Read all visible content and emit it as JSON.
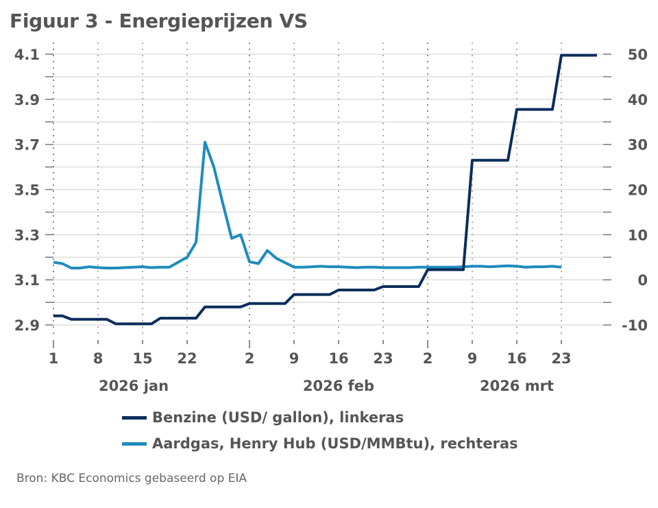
{
  "title": "Figuur 3 - Energieprijzen VS",
  "source": "Bron: KBC Economics gebaseerd op EIA",
  "colors": {
    "benzine": "#0b2d5b",
    "aardgas": "#1f8bbd",
    "text": "#555555",
    "grid": "#dddddd"
  },
  "chart_data": {
    "type": "line",
    "title": "Figuur 3 - Energieprijzen VS",
    "x_unit": "weekday index from 2026-01-01",
    "x_ticks": [
      {
        "index": 0,
        "label": "1"
      },
      {
        "index": 5,
        "label": "8"
      },
      {
        "index": 10,
        "label": "15"
      },
      {
        "index": 15,
        "label": "22"
      },
      {
        "index": 22,
        "label": "2"
      },
      {
        "index": 27,
        "label": "9"
      },
      {
        "index": 32,
        "label": "16"
      },
      {
        "index": 37,
        "label": "23"
      },
      {
        "index": 42,
        "label": "2"
      },
      {
        "index": 47,
        "label": "9"
      },
      {
        "index": 52,
        "label": "16"
      },
      {
        "index": 57,
        "label": "23"
      }
    ],
    "month_boundaries": [
      0,
      22,
      42
    ],
    "months": [
      {
        "label": "2026 jan",
        "center": 9
      },
      {
        "label": "2026 feb",
        "center": 32
      },
      {
        "label": "2026 mrt",
        "center": 52
      }
    ],
    "xlim": [
      0,
      62
    ],
    "y_left": {
      "ylim": [
        2.85,
        4.15
      ],
      "ticks": [
        "4.1",
        "3.9",
        "3.7",
        "3.5",
        "3.3",
        "3.1",
        "2.9"
      ],
      "tick_values": [
        4.1,
        3.9,
        3.7,
        3.5,
        3.3,
        3.1,
        2.9
      ],
      "minor_step": 0.1
    },
    "y_right": {
      "ylim": [
        -12.5,
        52.5
      ],
      "ticks": [
        "50",
        "40",
        "30",
        "20",
        "10",
        "0",
        "-10"
      ],
      "tick_values": [
        50,
        40,
        30,
        20,
        10,
        0,
        -10
      ]
    },
    "grid": true,
    "legend_position": "bottom",
    "series": [
      {
        "name": "Benzine (USD/ gallon), linkeras",
        "axis": "left",
        "x": [
          0,
          1,
          2,
          3,
          4,
          5,
          6,
          7,
          8,
          9,
          10,
          11,
          12,
          13,
          14,
          15,
          16,
          17,
          18,
          19,
          20,
          21,
          22,
          23,
          24,
          25,
          26,
          27,
          28,
          29,
          30,
          31,
          32,
          33,
          34,
          35,
          36,
          37,
          38,
          39,
          40,
          41,
          42,
          43,
          44,
          45,
          46,
          47,
          48,
          49,
          50,
          51,
          52,
          53,
          54,
          55,
          56,
          57,
          58,
          59,
          60,
          61
        ],
        "values": [
          2.94,
          2.94,
          2.925,
          2.925,
          2.925,
          2.925,
          2.925,
          2.905,
          2.905,
          2.905,
          2.905,
          2.905,
          2.93,
          2.93,
          2.93,
          2.93,
          2.93,
          2.98,
          2.98,
          2.98,
          2.98,
          2.98,
          2.995,
          2.995,
          2.995,
          2.995,
          2.995,
          3.035,
          3.035,
          3.035,
          3.035,
          3.035,
          3.055,
          3.055,
          3.055,
          3.055,
          3.055,
          3.07,
          3.07,
          3.07,
          3.07,
          3.07,
          3.145,
          3.145,
          3.145,
          3.145,
          3.145,
          3.63,
          3.63,
          3.63,
          3.63,
          3.63,
          3.855,
          3.855,
          3.855,
          3.855,
          3.855,
          4.095,
          4.095,
          4.095,
          4.095,
          4.095
        ]
      },
      {
        "name": "Aardgas, Henry Hub (USD/MMBtu), rechteras",
        "axis": "right",
        "x": [
          0,
          1,
          2,
          3,
          4,
          5,
          6,
          7,
          8,
          9,
          10,
          11,
          12,
          13,
          14,
          15,
          16,
          17,
          18,
          19,
          20,
          21,
          22,
          23,
          24,
          25,
          26,
          27,
          28,
          29,
          30,
          31,
          32,
          33,
          34,
          35,
          36,
          37,
          38,
          39,
          40,
          41,
          42,
          43,
          44,
          45,
          46,
          47,
          48,
          49,
          50,
          51,
          52,
          53,
          54,
          55,
          56,
          57
        ],
        "values": [
          3.9,
          3.6,
          2.6,
          2.6,
          2.9,
          2.7,
          2.6,
          2.6,
          2.7,
          2.8,
          2.9,
          2.7,
          2.8,
          2.8,
          3.9,
          5.0,
          8.3,
          30.5,
          25.0,
          17.0,
          9.2,
          10.0,
          4.0,
          3.6,
          6.5,
          4.8,
          3.8,
          2.8,
          2.8,
          2.9,
          3.0,
          2.9,
          2.9,
          2.8,
          2.7,
          2.8,
          2.8,
          2.7,
          2.7,
          2.7,
          2.7,
          2.8,
          2.8,
          2.8,
          2.8,
          2.8,
          2.9,
          3.0,
          3.0,
          2.9,
          3.0,
          3.1,
          3.0,
          2.8,
          2.9,
          2.9,
          3.0,
          2.8
        ]
      }
    ]
  }
}
